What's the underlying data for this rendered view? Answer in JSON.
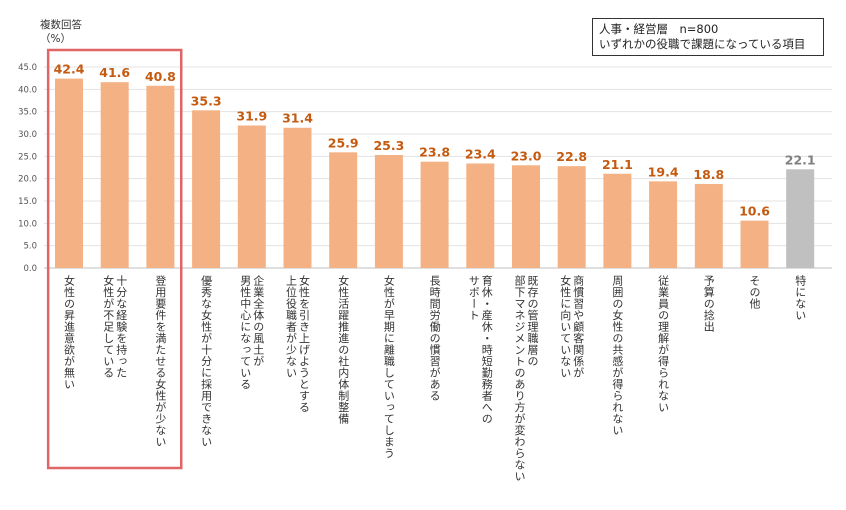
{
  "chart_data": {
    "type": "bar",
    "y_axis_title_line1": "複数回答",
    "y_axis_title_line2": "（%）",
    "legend_line1": "人事・経営層　n=800",
    "legend_line2": "いずれかの役職で課題になっている項目",
    "ylim": [
      0,
      45
    ],
    "yticks": [
      "0.0",
      "5.0",
      "10.0",
      "15.0",
      "20.0",
      "25.0",
      "30.0",
      "35.0",
      "40.0",
      "45.0"
    ],
    "categories": [
      "女性の昇進意欲が無い",
      "十分な経験を持った 女性が不足している",
      "登用要件を満たせる女性が少ない",
      "優秀な女性が十分に採用できない",
      "企業全体の風土が 男性中心になっている",
      "女性を引き上げようとする 上位役職者が少ない",
      "女性活躍推進の社内体制整備",
      "女性が早期に離職していってしまう",
      "長時間労働の慣習がある",
      "育休・産休・時短勤務者への サポート",
      "既存の管理職層の 部下マネジメントのあり方が変わらない",
      "商慣習や顧客関係が 女性に向いていない",
      "周囲の女性の共感が得られない",
      "従業員の理解が得られない",
      "予算の捻出",
      "その他",
      "特にない"
    ],
    "values": [
      42.4,
      41.6,
      40.8,
      35.3,
      31.9,
      31.4,
      25.9,
      25.3,
      23.8,
      23.4,
      23.0,
      22.8,
      21.1,
      19.4,
      18.8,
      10.6,
      22.1
    ],
    "value_labels": [
      "42.4",
      "41.6",
      "40.8",
      "35.3",
      "31.9",
      "31.4",
      "25.9",
      "25.3",
      "23.8",
      "23.4",
      "23.0",
      "22.8",
      "21.1",
      "19.4",
      "18.8",
      "10.6",
      "22.1"
    ],
    "colors": {
      "bar": "#f4b183",
      "bar_none": "#c0c0c0",
      "label": "#c55a11",
      "label_none": "#7f7f7f",
      "highlight": "#e06666"
    },
    "highlighted_count": 3
  }
}
